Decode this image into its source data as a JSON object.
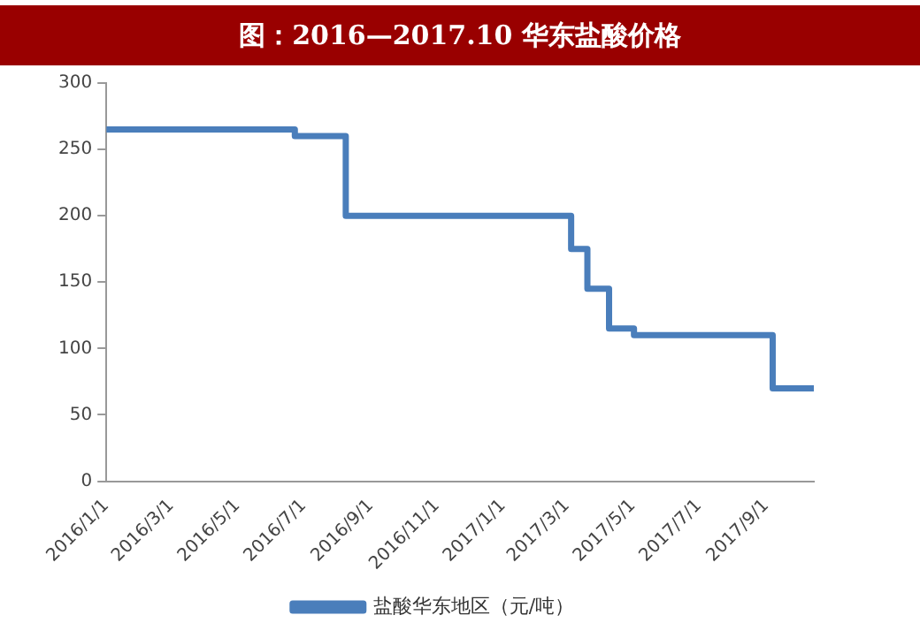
{
  "chart_data": {
    "type": "step",
    "title": "图：2016—2017.10 华东盐酸价格",
    "x": [
      "2016-01-01",
      "2016-06-23",
      "2016-08-09",
      "2017-03-05",
      "2017-03-20",
      "2017-04-09",
      "2017-05-02",
      "2017-09-07",
      "2017-10-15"
    ],
    "series": [
      {
        "name": "盐酸华东地区（元/吨）",
        "color": "#4a7ebb",
        "values": [
          265,
          260,
          200,
          175,
          145,
          115,
          110,
          70,
          70
        ]
      }
    ],
    "xlim": [
      "2016-01-01",
      "2017-10-15"
    ],
    "xticks": [
      {
        "value": "2016-01-01",
        "label": "2016/1/1"
      },
      {
        "value": "2016-03-01",
        "label": "2016/3/1"
      },
      {
        "value": "2016-05-01",
        "label": "2016/5/1"
      },
      {
        "value": "2016-07-01",
        "label": "2016/7/1"
      },
      {
        "value": "2016-09-01",
        "label": "2016/9/1"
      },
      {
        "value": "2016-11-01",
        "label": "2016/11/1"
      },
      {
        "value": "2017-01-01",
        "label": "2017/1/1"
      },
      {
        "value": "2017-03-01",
        "label": "2017/3/1"
      },
      {
        "value": "2017-05-01",
        "label": "2017/5/1"
      },
      {
        "value": "2017-07-01",
        "label": "2017/7/1"
      },
      {
        "value": "2017-09-01",
        "label": "2017/9/1"
      }
    ],
    "ylim": [
      0,
      300
    ],
    "yticks": [
      0,
      50,
      100,
      150,
      200,
      250,
      300
    ],
    "grid": false,
    "legend": "bottom"
  }
}
